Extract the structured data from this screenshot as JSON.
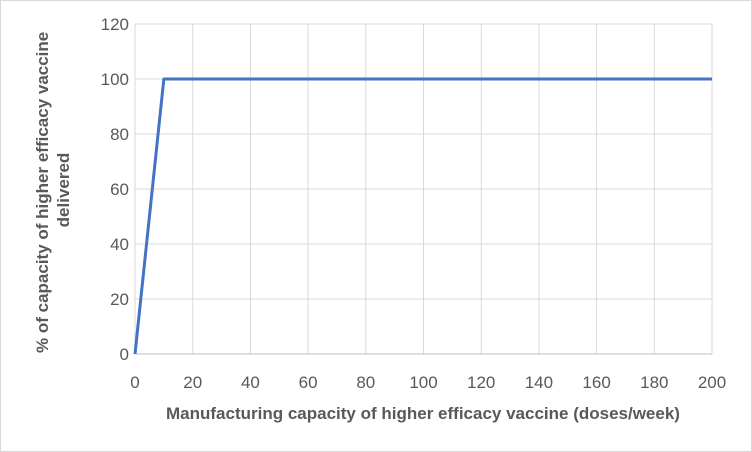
{
  "chart_data": {
    "type": "line",
    "title": "",
    "xlabel": "Manufacturing capacity of higher efficacy vaccine (doses/week)",
    "ylabel_lines": [
      "% of capacity of higher efficacy vaccine",
      "delivered"
    ],
    "xlim": [
      0,
      200
    ],
    "ylim": [
      0,
      120
    ],
    "x_ticks": [
      0,
      20,
      40,
      60,
      80,
      100,
      120,
      140,
      160,
      180,
      200
    ],
    "y_ticks": [
      0,
      20,
      40,
      60,
      80,
      100,
      120
    ],
    "grid": true,
    "series": [
      {
        "color": "#4472c4",
        "points": [
          [
            0,
            0
          ],
          [
            10,
            100
          ],
          [
            200,
            100
          ]
        ]
      }
    ]
  }
}
